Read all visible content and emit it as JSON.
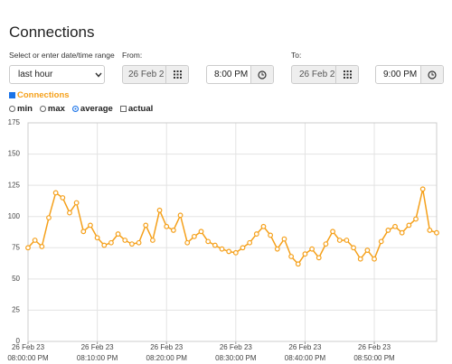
{
  "header": {
    "title": "Connections"
  },
  "range": {
    "label": "Select or enter date/time range",
    "selected": "last hour"
  },
  "from": {
    "label": "From:",
    "date": "26 Feb 2",
    "time": "8:00 PM"
  },
  "to": {
    "label": "To:",
    "date": "26 Feb 2",
    "time": "9:00 PM"
  },
  "series_toggle": {
    "label": "Connections",
    "checked": true
  },
  "options": [
    {
      "label": "min",
      "kind": "radio",
      "checked": false
    },
    {
      "label": "max",
      "kind": "radio",
      "checked": false
    },
    {
      "label": "average",
      "kind": "radio",
      "checked": true
    },
    {
      "label": "actual",
      "kind": "checkbox",
      "checked": false
    }
  ],
  "chart_data": {
    "type": "line",
    "x": [
      "08:00:00 PM",
      "08:01:00 PM",
      "08:02:00 PM",
      "08:03:00 PM",
      "08:04:00 PM",
      "08:05:00 PM",
      "08:06:00 PM",
      "08:07:00 PM",
      "08:08:00 PM",
      "08:09:00 PM",
      "08:10:00 PM",
      "08:11:00 PM",
      "08:12:00 PM",
      "08:13:00 PM",
      "08:14:00 PM",
      "08:15:00 PM",
      "08:16:00 PM",
      "08:17:00 PM",
      "08:18:00 PM",
      "08:19:00 PM",
      "08:20:00 PM",
      "08:21:00 PM",
      "08:22:00 PM",
      "08:23:00 PM",
      "08:24:00 PM",
      "08:25:00 PM",
      "08:26:00 PM",
      "08:27:00 PM",
      "08:28:00 PM",
      "08:29:00 PM",
      "08:30:00 PM",
      "08:31:00 PM",
      "08:32:00 PM",
      "08:33:00 PM",
      "08:34:00 PM",
      "08:35:00 PM",
      "08:36:00 PM",
      "08:37:00 PM",
      "08:38:00 PM",
      "08:39:00 PM",
      "08:40:00 PM",
      "08:41:00 PM",
      "08:42:00 PM",
      "08:43:00 PM",
      "08:44:00 PM",
      "08:45:00 PM",
      "08:46:00 PM",
      "08:47:00 PM",
      "08:48:00 PM",
      "08:49:00 PM",
      "08:50:00 PM",
      "08:51:00 PM",
      "08:52:00 PM",
      "08:53:00 PM",
      "08:54:00 PM",
      "08:55:00 PM",
      "08:56:00 PM",
      "08:57:00 PM",
      "08:58:00 PM",
      "08:59:00 PM"
    ],
    "series": [
      {
        "name": "Connections",
        "color": "#f5a01a",
        "values": [
          75,
          81,
          76,
          99,
          119,
          115,
          103,
          111,
          88,
          93,
          83,
          77,
          79,
          86,
          81,
          78,
          79,
          93,
          81,
          105,
          92,
          89,
          101,
          79,
          84,
          88,
          80,
          77,
          74,
          72,
          71,
          75,
          79,
          86,
          92,
          85,
          74,
          82,
          68,
          62,
          70,
          74,
          67,
          78,
          88,
          81,
          81,
          75,
          66,
          73,
          66,
          80,
          89,
          92,
          87,
          93,
          98,
          122,
          89,
          87
        ]
      }
    ],
    "ylim": [
      0,
      175
    ],
    "yticks": [
      0,
      25,
      50,
      75,
      100,
      125,
      150,
      175
    ],
    "xticks": [
      {
        "value": "08:00:00 PM",
        "label": [
          "26 Feb 23",
          "08:00:00 PM"
        ]
      },
      {
        "value": "08:10:00 PM",
        "label": [
          "26 Feb 23",
          "08:10:00 PM"
        ]
      },
      {
        "value": "08:20:00 PM",
        "label": [
          "26 Feb 23",
          "08:20:00 PM"
        ]
      },
      {
        "value": "08:30:00 PM",
        "label": [
          "26 Feb 23",
          "08:30:00 PM"
        ]
      },
      {
        "value": "08:40:00 PM",
        "label": [
          "26 Feb 23",
          "08:40:00 PM"
        ]
      },
      {
        "value": "08:50:00 PM",
        "label": [
          "26 Feb 23",
          "08:50:00 PM"
        ]
      }
    ],
    "grid": true
  }
}
